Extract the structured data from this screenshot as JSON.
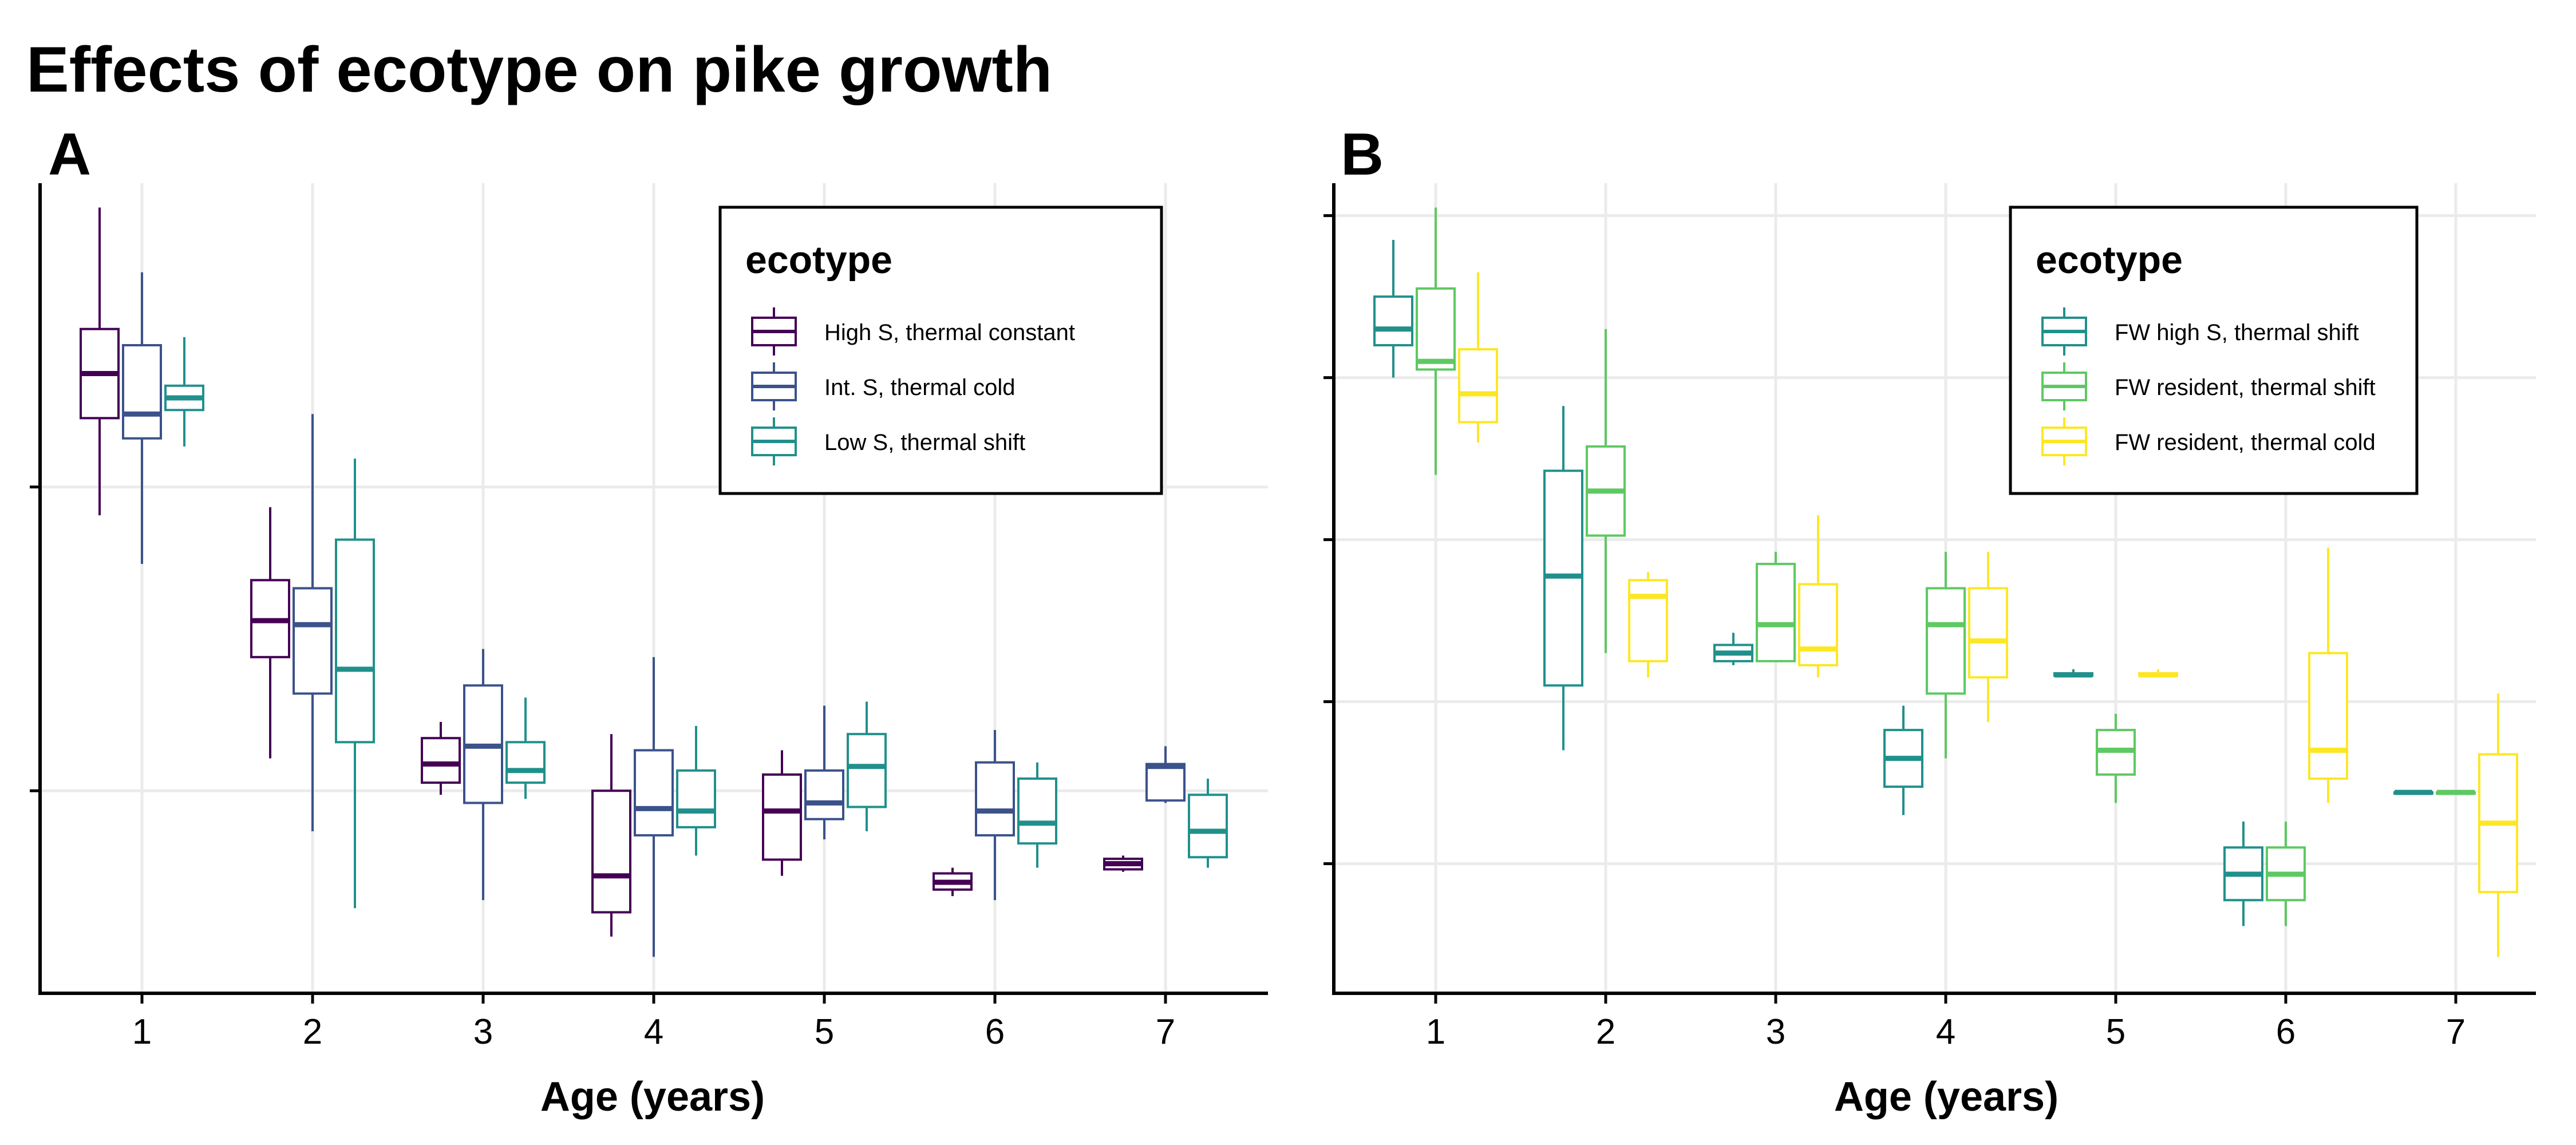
{
  "figure": {
    "title": "Effects of ecotype on pike growth"
  },
  "chart_data": [
    {
      "type": "boxplot",
      "panel_label": "A",
      "xlabel": "Age (years)",
      "ylabel": "",
      "categories": [
        "1",
        "2",
        "3",
        "4",
        "5",
        "6",
        "7"
      ],
      "ylim": [
        0,
        1
      ],
      "y_tick_values": [
        0.25,
        0.625
      ],
      "y_tick_labels": "not shown",
      "grid": true,
      "legend": {
        "title": "ecotype",
        "position": "top-right"
      },
      "series": [
        {
          "name": "High S, thermal constant",
          "color": "#440154",
          "boxes": [
            {
              "x": "1",
              "min": 0.59,
              "q1": 0.71,
              "median": 0.765,
              "q3": 0.82,
              "max": 0.97
            },
            {
              "x": "2",
              "min": 0.29,
              "q1": 0.415,
              "median": 0.46,
              "q3": 0.51,
              "max": 0.6
            },
            {
              "x": "3",
              "min": 0.245,
              "q1": 0.26,
              "median": 0.283,
              "q3": 0.315,
              "max": 0.335
            },
            {
              "x": "4",
              "min": 0.07,
              "q1": 0.1,
              "median": 0.145,
              "q3": 0.25,
              "max": 0.32
            },
            {
              "x": "5",
              "min": 0.145,
              "q1": 0.165,
              "median": 0.225,
              "q3": 0.27,
              "max": 0.3
            },
            {
              "x": "6",
              "min": 0.12,
              "q1": 0.128,
              "median": 0.137,
              "q3": 0.148,
              "max": 0.155
            },
            {
              "x": "7",
              "min": 0.15,
              "q1": 0.153,
              "median": 0.16,
              "q3": 0.166,
              "max": 0.17
            }
          ]
        },
        {
          "name": "Int. S, thermal cold",
          "color": "#3b528b",
          "boxes": [
            {
              "x": "1",
              "min": 0.53,
              "q1": 0.685,
              "median": 0.715,
              "q3": 0.8,
              "max": 0.89
            },
            {
              "x": "2",
              "min": 0.2,
              "q1": 0.37,
              "median": 0.455,
              "q3": 0.5,
              "max": 0.715
            },
            {
              "x": "3",
              "min": 0.115,
              "q1": 0.235,
              "median": 0.305,
              "q3": 0.38,
              "max": 0.425
            },
            {
              "x": "4",
              "min": 0.045,
              "q1": 0.195,
              "median": 0.228,
              "q3": 0.3,
              "max": 0.415
            },
            {
              "x": "5",
              "min": 0.19,
              "q1": 0.215,
              "median": 0.235,
              "q3": 0.275,
              "max": 0.355
            },
            {
              "x": "6",
              "min": 0.115,
              "q1": 0.195,
              "median": 0.225,
              "q3": 0.285,
              "max": 0.325
            },
            {
              "x": "7",
              "min": 0.235,
              "q1": 0.238,
              "median": 0.28,
              "q3": 0.283,
              "max": 0.305
            }
          ]
        },
        {
          "name": "Low S, thermal shift",
          "color": "#21908c",
          "boxes": [
            {
              "x": "1",
              "min": 0.675,
              "q1": 0.72,
              "median": 0.735,
              "q3": 0.75,
              "max": 0.81
            },
            {
              "x": "2",
              "min": 0.105,
              "q1": 0.31,
              "median": 0.4,
              "q3": 0.56,
              "max": 0.66
            },
            {
              "x": "3",
              "min": 0.24,
              "q1": 0.26,
              "median": 0.275,
              "q3": 0.31,
              "max": 0.365
            },
            {
              "x": "4",
              "min": 0.17,
              "q1": 0.205,
              "median": 0.225,
              "q3": 0.275,
              "max": 0.33
            },
            {
              "x": "5",
              "min": 0.2,
              "q1": 0.23,
              "median": 0.28,
              "q3": 0.32,
              "max": 0.36
            },
            {
              "x": "6",
              "min": 0.155,
              "q1": 0.185,
              "median": 0.21,
              "q3": 0.265,
              "max": 0.285
            },
            {
              "x": "7",
              "min": 0.155,
              "q1": 0.168,
              "median": 0.2,
              "q3": 0.245,
              "max": 0.265
            }
          ]
        }
      ]
    },
    {
      "type": "boxplot",
      "panel_label": "B",
      "xlabel": "Age (years)",
      "ylabel": "",
      "categories": [
        "1",
        "2",
        "3",
        "4",
        "5",
        "6",
        "7"
      ],
      "ylim": [
        0,
        1
      ],
      "y_tick_values": [
        0.16,
        0.36,
        0.56,
        0.76,
        0.96
      ],
      "y_tick_labels": "not shown",
      "grid": true,
      "legend": {
        "title": "ecotype",
        "position": "top-right"
      },
      "series": [
        {
          "name": "FW high S, thermal shift",
          "color": "#21908c",
          "boxes": [
            {
              "x": "1",
              "min": 0.76,
              "q1": 0.8,
              "median": 0.82,
              "q3": 0.86,
              "max": 0.93
            },
            {
              "x": "2",
              "min": 0.3,
              "q1": 0.38,
              "median": 0.515,
              "q3": 0.645,
              "max": 0.725
            },
            {
              "x": "3",
              "min": 0.405,
              "q1": 0.41,
              "median": 0.42,
              "q3": 0.43,
              "max": 0.445
            },
            {
              "x": "4",
              "min": 0.22,
              "q1": 0.255,
              "median": 0.29,
              "q3": 0.325,
              "max": 0.355
            },
            {
              "x": "5",
              "min": 0.39,
              "q1": 0.392,
              "median": 0.393,
              "q3": 0.395,
              "max": 0.4
            },
            {
              "x": "6",
              "min": 0.083,
              "q1": 0.115,
              "median": 0.147,
              "q3": 0.18,
              "max": 0.212
            },
            {
              "x": "7",
              "min": 0.248,
              "q1": 0.248,
              "median": 0.248,
              "q3": 0.248,
              "max": 0.248
            }
          ]
        },
        {
          "name": "FW resident, thermal shift",
          "color": "#5ec962",
          "boxes": [
            {
              "x": "1",
              "min": 0.64,
              "q1": 0.77,
              "median": 0.78,
              "q3": 0.87,
              "max": 0.97
            },
            {
              "x": "2",
              "min": 0.42,
              "q1": 0.565,
              "median": 0.62,
              "q3": 0.675,
              "max": 0.82
            },
            {
              "x": "3",
              "min": 0.41,
              "q1": 0.41,
              "median": 0.455,
              "q3": 0.53,
              "max": 0.545
            },
            {
              "x": "4",
              "min": 0.29,
              "q1": 0.37,
              "median": 0.455,
              "q3": 0.5,
              "max": 0.545
            },
            {
              "x": "5",
              "min": 0.235,
              "q1": 0.27,
              "median": 0.3,
              "q3": 0.325,
              "max": 0.345
            },
            {
              "x": "6",
              "min": 0.083,
              "q1": 0.115,
              "median": 0.147,
              "q3": 0.18,
              "max": 0.212
            },
            {
              "x": "7",
              "min": 0.248,
              "q1": 0.248,
              "median": 0.248,
              "q3": 0.248,
              "max": 0.248
            }
          ]
        },
        {
          "name": "FW resident, thermal cold",
          "color": "#fde725",
          "boxes": [
            {
              "x": "1",
              "min": 0.68,
              "q1": 0.705,
              "median": 0.74,
              "q3": 0.795,
              "max": 0.89
            },
            {
              "x": "2",
              "min": 0.39,
              "q1": 0.41,
              "median": 0.49,
              "q3": 0.51,
              "max": 0.52
            },
            {
              "x": "3",
              "min": 0.39,
              "q1": 0.405,
              "median": 0.425,
              "q3": 0.505,
              "max": 0.59
            },
            {
              "x": "4",
              "min": 0.335,
              "q1": 0.39,
              "median": 0.435,
              "q3": 0.5,
              "max": 0.545
            },
            {
              "x": "5",
              "min": 0.39,
              "q1": 0.392,
              "median": 0.393,
              "q3": 0.395,
              "max": 0.4
            },
            {
              "x": "6",
              "min": 0.235,
              "q1": 0.265,
              "median": 0.3,
              "q3": 0.42,
              "max": 0.55
            },
            {
              "x": "7",
              "min": 0.045,
              "q1": 0.125,
              "median": 0.21,
              "q3": 0.295,
              "max": 0.37
            }
          ]
        }
      ]
    }
  ]
}
